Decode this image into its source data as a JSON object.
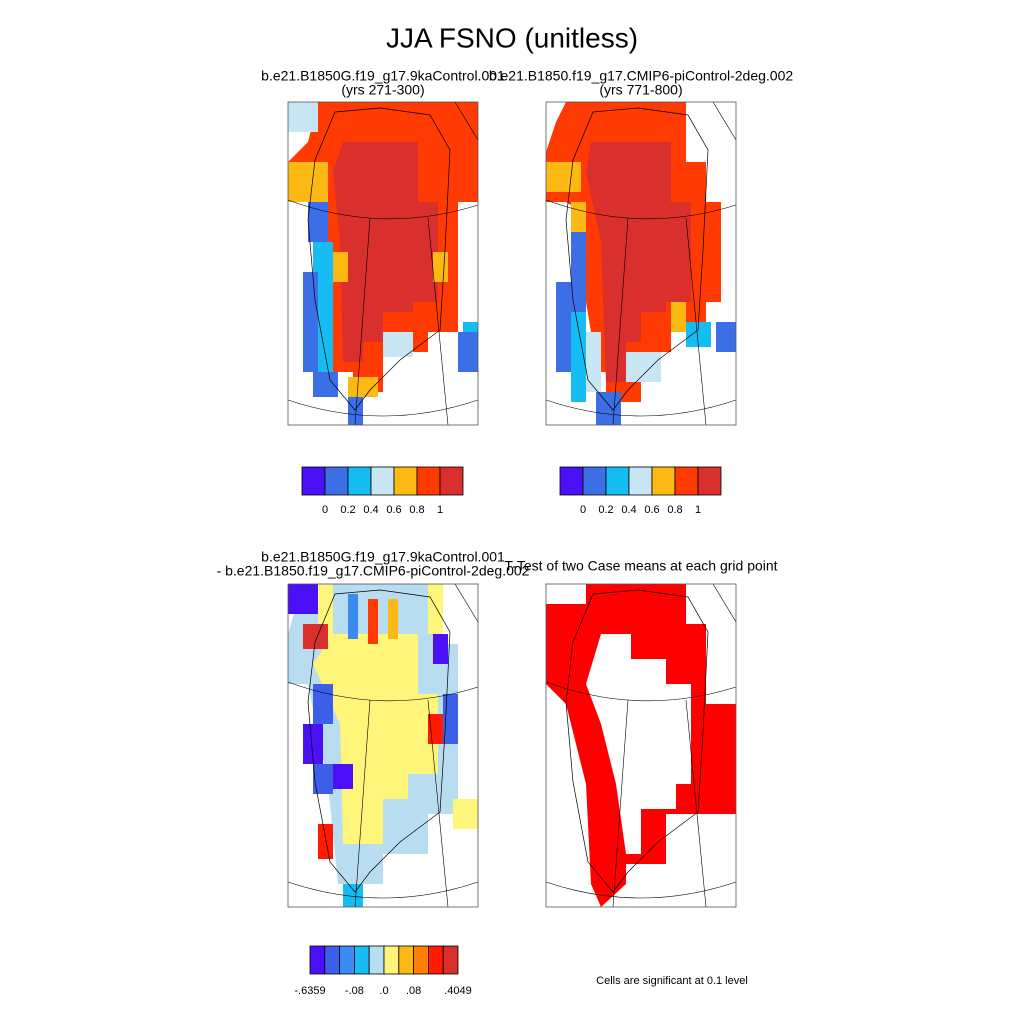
{
  "title": "JJA FSNO (unitless)",
  "panels": [
    {
      "title_lines": [
        "b.e21.B1850G.f19_g17.9kaControl.001",
        "(yrs 271-300)"
      ]
    },
    {
      "title_lines": [
        "b.e21.B1850.f19_g17.CMIP6-piControl-2deg.002",
        "(yrs 771-800)"
      ]
    },
    {
      "title_lines": [
        "b.e21.B1850G.f19_g17.9kaControl.001",
        "- b.e21.B1850.f19_g17.CMIP6-piControl-2deg.002"
      ]
    },
    {
      "title_lines": [
        "T-Test of two Case means at each grid point"
      ]
    }
  ],
  "colorbars": [
    {
      "colors": [
        "#4b10f5",
        "#3c6ee6",
        "#16bdf3",
        "#c8e5f3",
        "#fcb813",
        "#ff3a03",
        "#d9302d"
      ],
      "labels": [
        null,
        "0",
        "0.2",
        "0.4",
        "0.6",
        "0.8",
        "1",
        null
      ]
    },
    {
      "colors": [
        "#4b10f5",
        "#3c6ee6",
        "#16bdf3",
        "#c8e5f3",
        "#fcb813",
        "#ff3a03",
        "#d9302d"
      ],
      "labels": [
        null,
        "0",
        "0.2",
        "0.4",
        "0.6",
        "0.8",
        "1",
        null
      ]
    },
    {
      "colors": [
        "#4b10f5",
        "#3c5ee8",
        "#3b8af0",
        "#16bdf3",
        "#b8dcf0",
        "#fff57a",
        "#fcb813",
        "#ff7f00",
        "#ff1a00",
        "#d9302d"
      ],
      "labels": [
        "-.6359",
        null,
        null,
        "-.08",
        null,
        ".0",
        null,
        ".08",
        null,
        null,
        ".4049"
      ]
    }
  ],
  "note": "Cells are significant at 0.1 level"
}
